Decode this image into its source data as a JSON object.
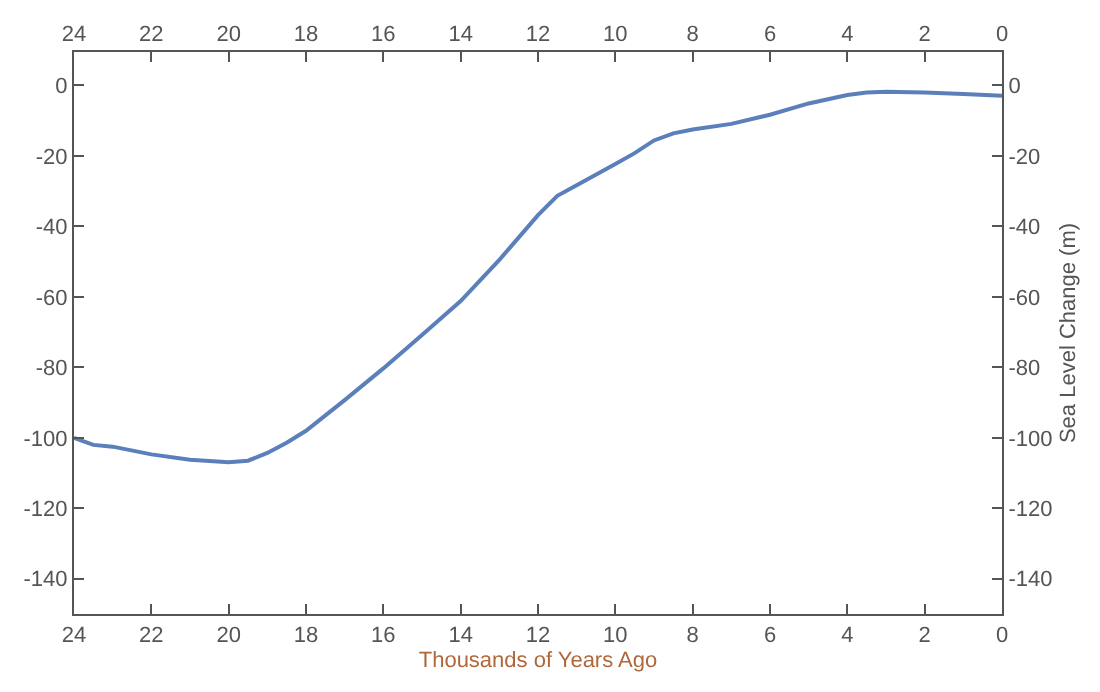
{
  "chart_data": {
    "type": "line",
    "xlabel": "Thousands of Years Ago",
    "y2label": "Sea Level Change (m)",
    "x": [
      24,
      23.5,
      23,
      22,
      21,
      20,
      19.5,
      19,
      18.5,
      18,
      17,
      16,
      15,
      14,
      13,
      12,
      11.5,
      11,
      10,
      9.5,
      9,
      8.5,
      8,
      7,
      6,
      5,
      4,
      3.5,
      3,
      2,
      1,
      0
    ],
    "series": [
      {
        "color": "#5b7fbb",
        "values": [
          -100,
          -102,
          -102.5,
          -104.7,
          -106.2,
          -106.9,
          -106.5,
          -104.3,
          -101.4,
          -98,
          -89.3,
          -80.3,
          -70.8,
          -61.2,
          -49.5,
          -36.8,
          -31.3,
          -28.3,
          -22.3,
          -19.2,
          -15.6,
          -13.6,
          -12.5,
          -10.9,
          -8.3,
          -5.1,
          -2.7,
          -2,
          -1.8,
          -2,
          -2.4,
          -2.9
        ]
      }
    ],
    "xlim": [
      24,
      0
    ],
    "xticks": [
      24,
      22,
      20,
      18,
      16,
      14,
      12,
      10,
      8,
      6,
      4,
      2,
      0
    ],
    "x2lim": [
      24,
      0
    ],
    "x2ticks": [
      24,
      22,
      20,
      18,
      16,
      14,
      12,
      10,
      8,
      6,
      4,
      2,
      0
    ],
    "ylim": [
      -150,
      9.5
    ],
    "yticks": [
      -140,
      -120,
      -100,
      -80,
      -60,
      -40,
      -20,
      0
    ],
    "y2lim": [
      -150,
      9.5
    ],
    "y2ticks": [
      -140,
      -120,
      -100,
      -80,
      -60,
      -40,
      -20,
      0
    ],
    "marker": "none",
    "line_style": "solid"
  }
}
